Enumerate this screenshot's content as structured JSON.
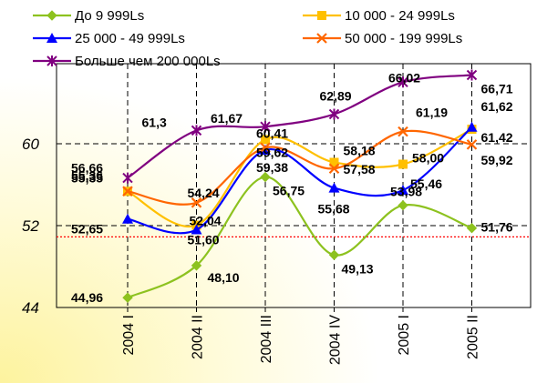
{
  "chart_data": {
    "type": "line",
    "categories": [
      "2004 I",
      "2004 II",
      "2004 III",
      "2004 IV",
      "2005 I",
      "2005 II"
    ],
    "ylim": [
      44,
      68
    ],
    "yticks": [
      "44",
      "52",
      "60"
    ],
    "ytick_values": [
      44,
      52,
      60
    ],
    "reference_line": 50.9,
    "grid": true,
    "legend_position": "top",
    "series": [
      {
        "name": "До 9 999Ls",
        "color": "#8dc21f",
        "marker": "diamond",
        "values": [
          44.96,
          48.1,
          56.75,
          49.13,
          53.98,
          51.76
        ],
        "labels": [
          "44,96",
          "48,10",
          "56,75",
          "49,13",
          "53,98",
          "51,76"
        ]
      },
      {
        "name": "10 000 - 24 999Ls",
        "color": "#ffc000",
        "marker": "square",
        "values": [
          55.35,
          52.04,
          60.41,
          58.18,
          58.0,
          61.42
        ],
        "labels": [
          "55,35",
          "52,04",
          "60,41",
          "58,18",
          "58,00",
          "61,42"
        ]
      },
      {
        "name": "25 000 - 49 999Ls",
        "color": "#0000ff",
        "marker": "triangle",
        "values": [
          52.65,
          51.6,
          59.38,
          55.68,
          55.46,
          61.62
        ],
        "labels": [
          "52,65",
          "51,60",
          "59,38",
          "55,68",
          "55,46",
          "61,62"
        ]
      },
      {
        "name": "50 000 - 199 999Ls",
        "color": "#ff6600",
        "marker": "x",
        "values": [
          55.36,
          54.24,
          59.62,
          57.58,
          61.19,
          59.92
        ],
        "labels": [
          "55,36",
          "54,24",
          "59,62",
          "57,58",
          "61,19",
          "59,92"
        ]
      },
      {
        "name": "Больше чем 200 000Ls",
        "color": "#800080",
        "marker": "star",
        "values": [
          56.66,
          61.3,
          61.67,
          62.89,
          66.02,
          66.71
        ],
        "labels": [
          "56,66",
          "61,3",
          "61,67",
          "62,89",
          "66,02",
          "66,71"
        ]
      }
    ]
  }
}
